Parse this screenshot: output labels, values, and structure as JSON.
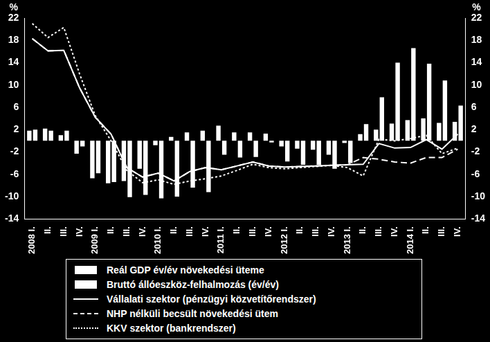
{
  "chart_data": {
    "type": "bar",
    "y_label": "%",
    "y2_label": "%",
    "categories": [
      "2008 I.",
      "II.",
      "III.",
      "IV.",
      "2009 I.",
      "II.",
      "III.",
      "IV.",
      "2010 I.",
      "II.",
      "III.",
      "IV.",
      "2011 I.",
      "II.",
      "III.",
      "IV.",
      "2012 I.",
      "II.",
      "III.",
      "IV.",
      "2013 I.",
      "II.",
      "III.",
      "IV.",
      "2014 I.",
      "II.",
      "III.",
      "IV."
    ],
    "ylim": [
      -14,
      22
    ],
    "yticks": [
      -14,
      -10,
      -6,
      -2,
      2,
      6,
      10,
      14,
      18,
      22
    ],
    "y2lim": [
      -14,
      22
    ],
    "y2ticks": [
      -14,
      -10,
      -6,
      -2,
      2,
      6,
      10,
      14,
      18,
      22
    ],
    "grid": false,
    "series": [
      {
        "name": "Reál GDP év/év növekedési üteme",
        "type": "bar",
        "color": "#ffffff",
        "values": [
          1.8,
          2.2,
          1.0,
          -2.3,
          -6.7,
          -7.6,
          -7.2,
          -5.0,
          -0.8,
          0.7,
          1.5,
          1.8,
          2.7,
          1.5,
          1.5,
          1.3,
          -1.0,
          -1.4,
          -1.6,
          -2.5,
          -0.4,
          1.2,
          2.0,
          3.1,
          3.7,
          4.0,
          3.2,
          3.4
        ]
      },
      {
        "name": "Bruttó állóeszköz-felhalmozás (év/év)",
        "type": "bar",
        "color": "#ffffff",
        "values": [
          2.0,
          1.8,
          1.8,
          -1.0,
          -5.8,
          -7.4,
          -10.1,
          -9.7,
          -10.3,
          -10.0,
          -8.4,
          -9.2,
          -2.5,
          -3.0,
          -2.9,
          -0.3,
          -3.7,
          -4.3,
          -4.3,
          -5.0,
          -4.0,
          3.0,
          7.8,
          14.0,
          16.6,
          13.8,
          10.8,
          6.3
        ]
      },
      {
        "name": "Vállalati szektor (pénzügyi közvetítőrendszer)",
        "type": "line",
        "line_style": "solid",
        "color": "#ffffff",
        "values": [
          18.3,
          16.1,
          16.2,
          9.5,
          4.2,
          1.2,
          -4.8,
          -6.5,
          -5.8,
          -7.2,
          -5.5,
          -4.8,
          -5.2,
          -4.5,
          -3.8,
          -4.5,
          -4.7,
          -4.6,
          -4.5,
          -4.4,
          -4.3,
          -4.2,
          -0.5,
          -1.3,
          -1.2,
          0.2,
          -1.5,
          1.2
        ]
      },
      {
        "name": "NHP nélküli becsült növekedési ütem",
        "type": "line",
        "line_style": "dashed",
        "color": "#ffffff",
        "values": [
          18.3,
          16.1,
          16.2,
          9.5,
          4.2,
          1.2,
          -4.8,
          -6.5,
          -5.8,
          -7.2,
          -5.5,
          -4.8,
          -5.2,
          -4.5,
          -3.8,
          -4.5,
          -4.7,
          -4.6,
          -4.5,
          -4.4,
          -4.3,
          -3.0,
          -3.3,
          -3.8,
          -4.0,
          -3.0,
          -3.0,
          -1.5
        ]
      },
      {
        "name": "KKV szektor (bankrendszer)",
        "type": "line",
        "line_style": "dotted",
        "color": "#ffffff",
        "values": [
          21.0,
          18.5,
          20.3,
          12.0,
          4.5,
          0.0,
          -5.3,
          -7.5,
          -7.0,
          -7.8,
          -7.2,
          -6.8,
          -6.3,
          -5.3,
          -4.2,
          -4.8,
          -5.0,
          -4.8,
          -4.6,
          -4.4,
          -4.8,
          -6.3,
          0.3,
          0.0,
          0.4,
          1.0,
          -2.3,
          -1.3
        ]
      }
    ]
  }
}
